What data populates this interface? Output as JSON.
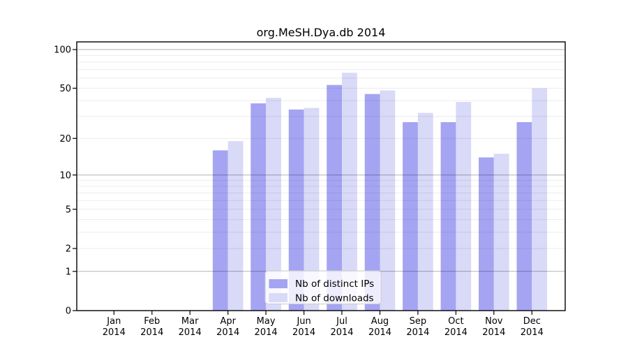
{
  "chart_data": {
    "type": "bar",
    "title": "org.MeSH.Dya.db 2014",
    "categories": [
      "Jan",
      "Feb",
      "Mar",
      "Apr",
      "May",
      "Jun",
      "Jul",
      "Aug",
      "Sep",
      "Oct",
      "Nov",
      "Dec"
    ],
    "category_year": "2014",
    "series": [
      {
        "name": "Nb of distinct IPs",
        "color": "#a4a4f2",
        "values": [
          0,
          0,
          0,
          16,
          38,
          34,
          53,
          45,
          27,
          27,
          14,
          27
        ]
      },
      {
        "name": "Nb of downloads",
        "color": "#d9d9f8",
        "values": [
          0,
          0,
          0,
          19,
          42,
          35,
          66,
          48,
          32,
          39,
          15,
          50
        ]
      }
    ],
    "yticks": [
      0,
      1,
      2,
      5,
      10,
      20,
      50,
      100
    ],
    "y_scale": "log1p",
    "ylim": [
      0,
      115
    ],
    "xlabel": "",
    "ylabel": "",
    "grid": true,
    "legend_position": "lower center",
    "colors": {
      "axis": "#000000",
      "major_grid": "#b5b5b5",
      "minor_grid": "#ececec",
      "legend_border": "#cccccc",
      "background": "#ffffff"
    }
  }
}
